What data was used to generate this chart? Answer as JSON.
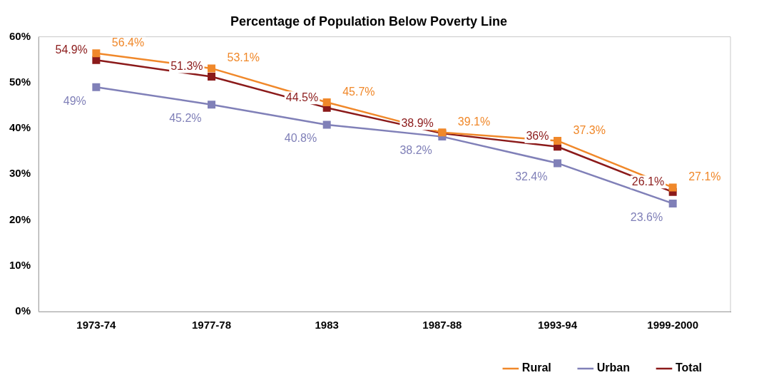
{
  "chart_data": {
    "type": "line",
    "title": "Percentage of Population Below Poverty Line",
    "categories": [
      "1973-74",
      "1977-78",
      "1983",
      "1987-88",
      "1993-94",
      "1999-2000"
    ],
    "series": [
      {
        "name": "Rural",
        "color": "#f0882a",
        "values": [
          56.4,
          53.1,
          45.7,
          39.1,
          37.3,
          27.1
        ],
        "value_labels": [
          "56.4%",
          "53.1%",
          "45.7%",
          "39.1%",
          "37.3%",
          "27.1%"
        ]
      },
      {
        "name": "Urban",
        "color": "#8080b8",
        "values": [
          49,
          45.2,
          40.8,
          38.2,
          32.4,
          23.6
        ],
        "value_labels": [
          "49%",
          "45.2%",
          "40.8%",
          "38.2%",
          "32.4%",
          "23.6%"
        ]
      },
      {
        "name": "Total",
        "color": "#8b1a1a",
        "values": [
          54.9,
          51.3,
          44.5,
          38.9,
          36,
          26.1
        ],
        "value_labels": [
          "54.9%",
          "51.3%",
          "44.5%",
          "38.9%",
          "36%",
          "26.1%"
        ]
      }
    ],
    "ylim": [
      0,
      60
    ],
    "yticks": [
      {
        "value": 0,
        "label": "0%"
      },
      {
        "value": 10,
        "label": "10%"
      },
      {
        "value": 20,
        "label": "20%"
      },
      {
        "value": 30,
        "label": "30%"
      },
      {
        "value": 40,
        "label": "40%"
      },
      {
        "value": 50,
        "label": "50%"
      },
      {
        "value": 60,
        "label": "60%"
      }
    ],
    "grid": false,
    "legend": "bottom right",
    "marker": "square",
    "line_style": "solid"
  }
}
